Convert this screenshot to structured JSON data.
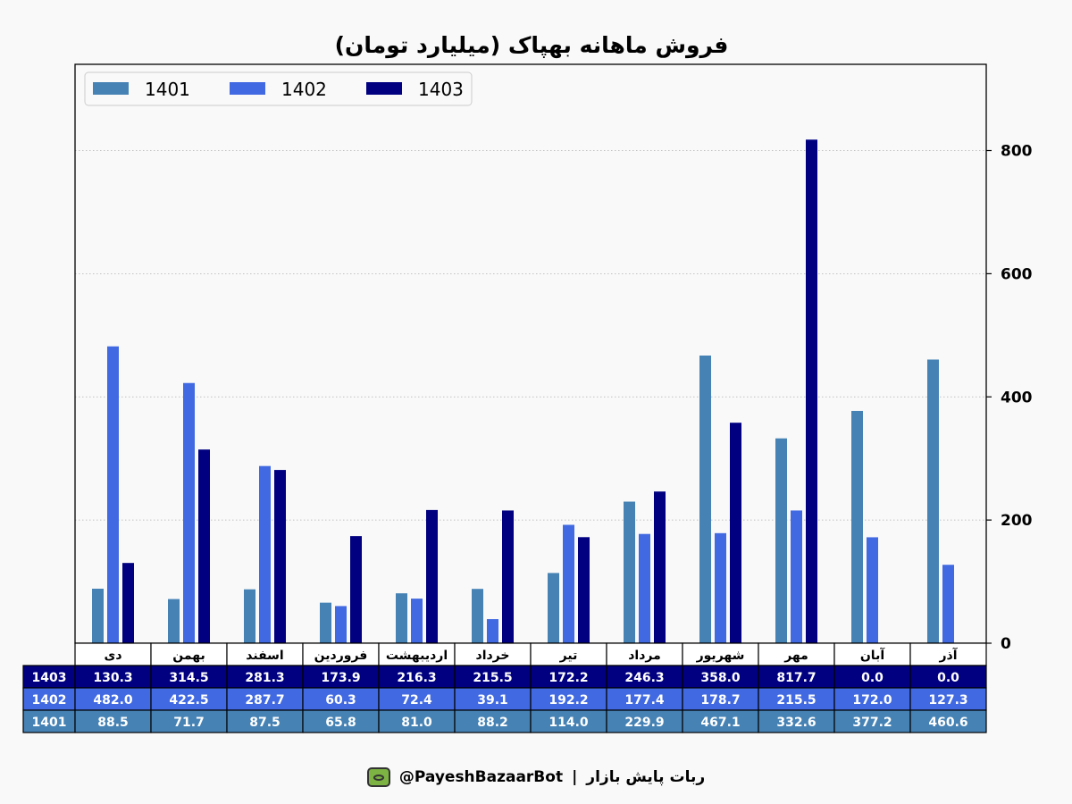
{
  "colors": {
    "s1401": "#4682b4",
    "s1402": "#4169e1",
    "s1403": "#000080",
    "axis": "#000000",
    "grid": "#b0b0b0"
  },
  "footer": {
    "bot_name": "ربات پایش بازار",
    "separator": "|",
    "handle": "@PayeshBazaarBot",
    "icon": "monitor-bot-icon"
  },
  "chart_data": {
    "type": "bar",
    "title": "فروش ماهانه بهپاک (میلیارد تومان)",
    "categories": [
      "دی",
      "بهمن",
      "اسفند",
      "فروردین",
      "اردیبهشت",
      "خرداد",
      "تیر",
      "مرداد",
      "شهریور",
      "مهر",
      "آبان",
      "آذر"
    ],
    "series": [
      {
        "name": "1401",
        "values": [
          88.5,
          71.7,
          87.5,
          65.8,
          81.0,
          88.2,
          114.0,
          229.9,
          467.1,
          332.6,
          377.2,
          460.6
        ]
      },
      {
        "name": "1402",
        "values": [
          482.0,
          422.5,
          287.7,
          60.3,
          72.4,
          39.1,
          192.2,
          177.4,
          178.7,
          215.5,
          172.0,
          127.3
        ]
      },
      {
        "name": "1403",
        "values": [
          130.3,
          314.5,
          281.3,
          173.9,
          216.3,
          215.5,
          172.2,
          246.3,
          358.0,
          817.7,
          0.0,
          0.0
        ]
      }
    ],
    "table_rows": [
      "1403",
      "1402",
      "1401"
    ],
    "ylim": [
      0,
      940
    ],
    "yticks": [
      0,
      200,
      400,
      600,
      800
    ],
    "y_axis_side": "right",
    "grid": "horizontal dotted",
    "legend_position": "top-left",
    "xlabel": "",
    "ylabel": ""
  }
}
